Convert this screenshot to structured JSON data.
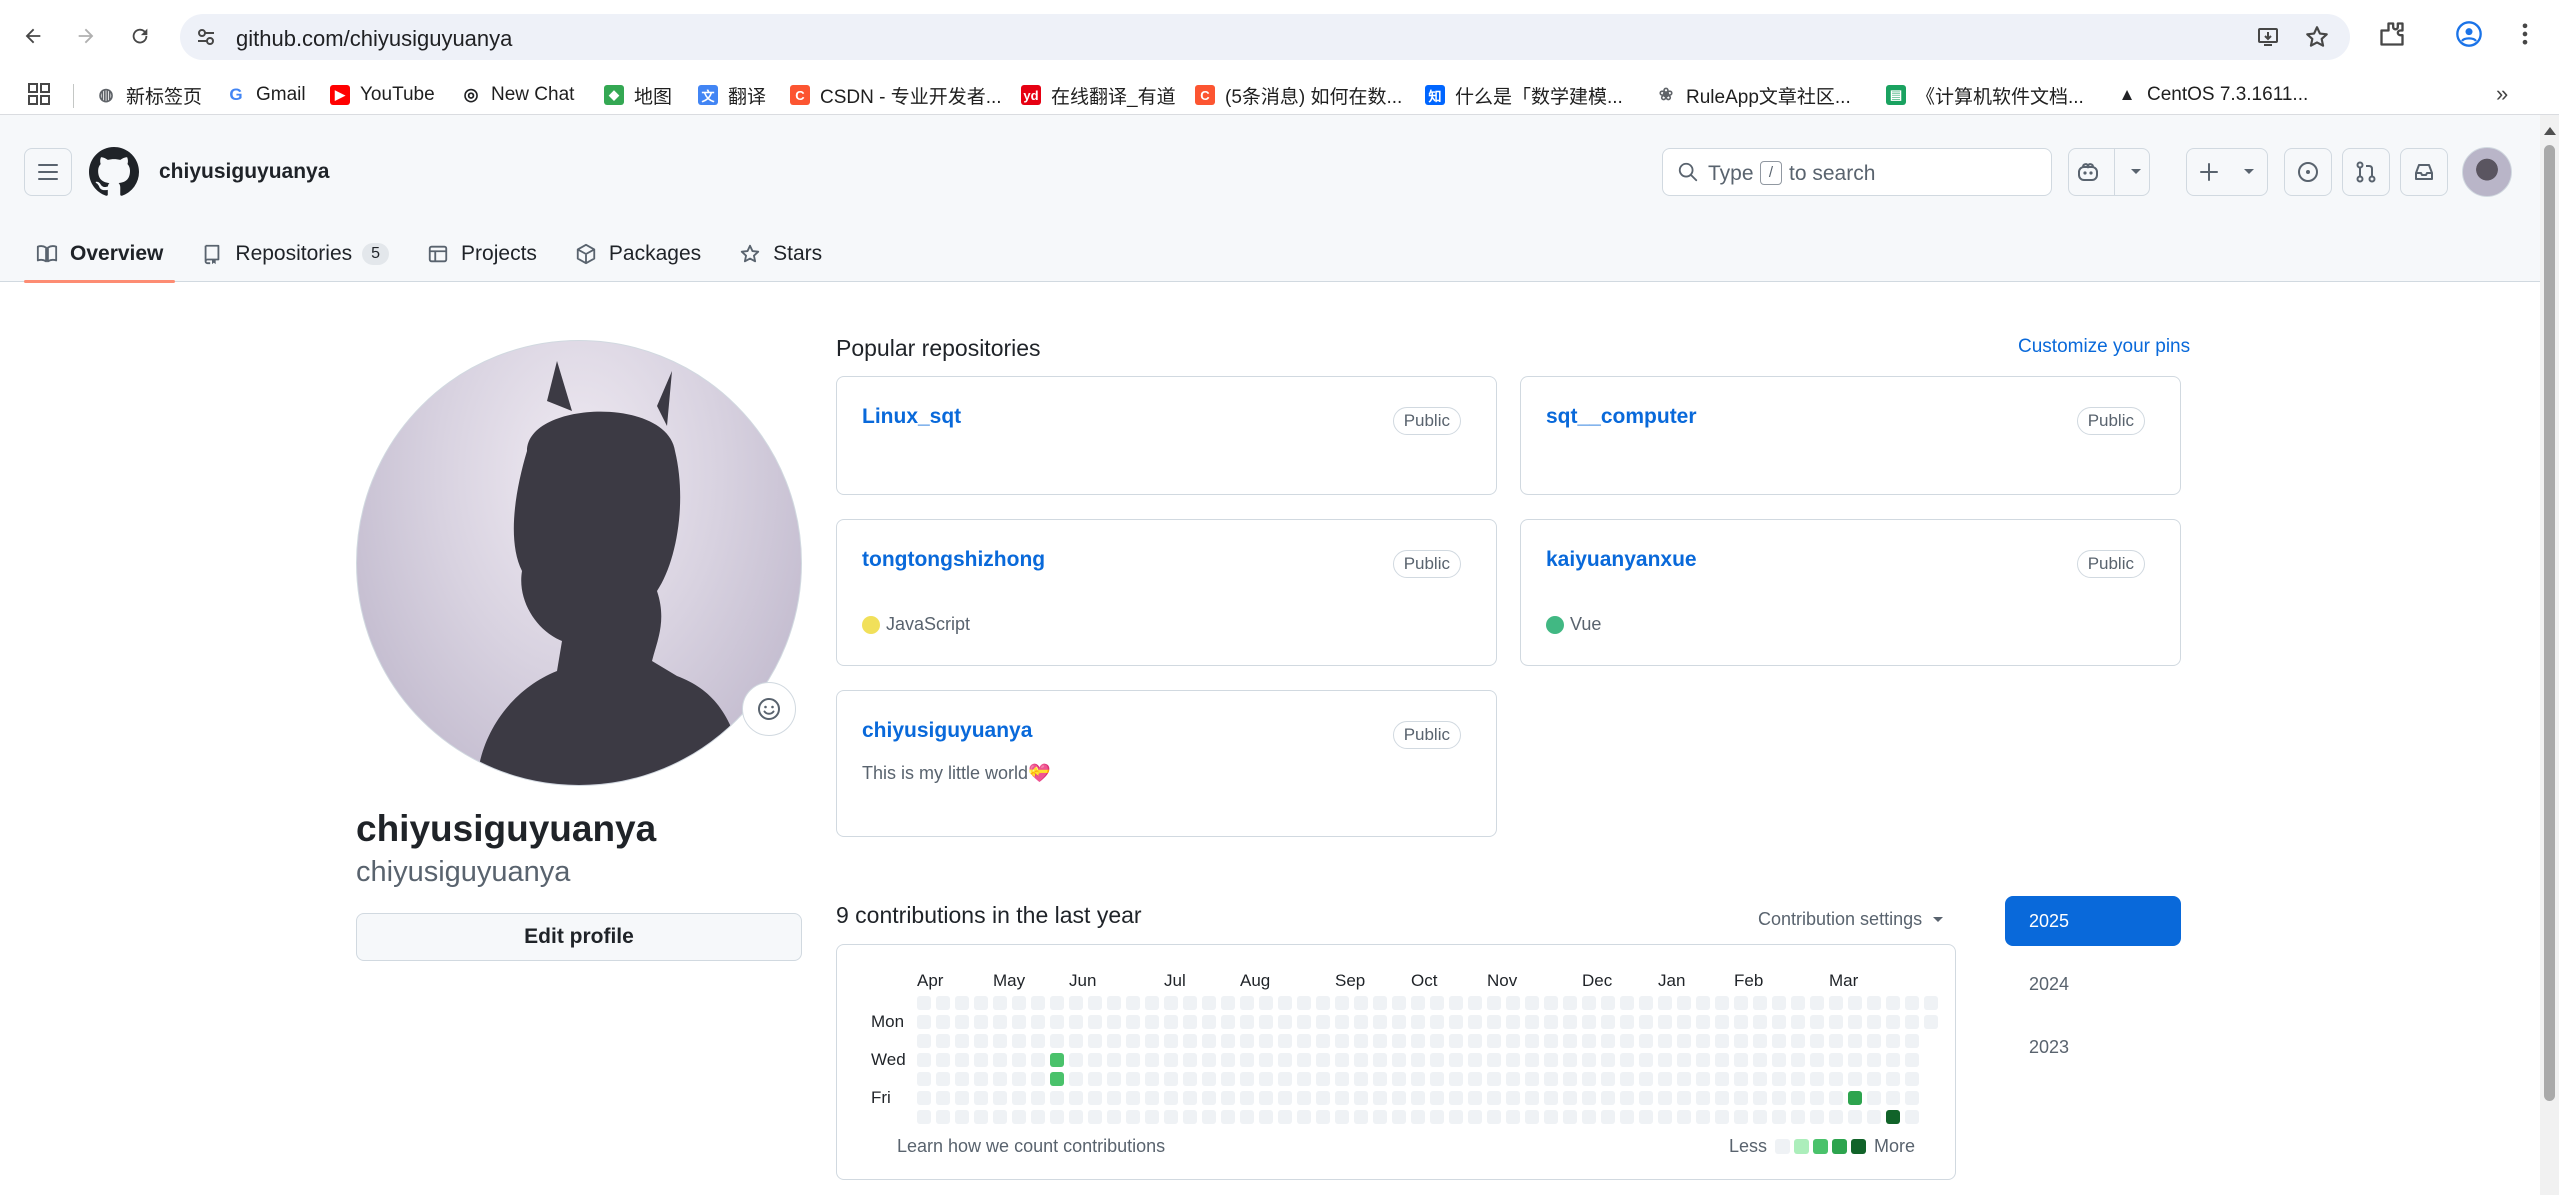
{
  "browser": {
    "url": "github.com/chiyusiguyuanya",
    "bookmarks": [
      {
        "label": "新标签页",
        "icon": "globe-icon",
        "color": "#5f6368"
      },
      {
        "label": "Gmail",
        "icon": "google-icon",
        "color": "#4285f4"
      },
      {
        "label": "YouTube",
        "icon": "youtube-icon",
        "color": "#ff0000"
      },
      {
        "label": "New Chat",
        "icon": "openai-icon",
        "color": "#202124"
      },
      {
        "label": "地图",
        "icon": "maps-icon",
        "color": "#34a853"
      },
      {
        "label": "翻译",
        "icon": "translate-icon",
        "color": "#4285f4"
      },
      {
        "label": "CSDN - 专业开发者...",
        "icon": "csdn-icon",
        "color": "#fc5531"
      },
      {
        "label": "在线翻译_有道",
        "icon": "youdao-icon",
        "color": "#e60012"
      },
      {
        "label": "(5条消息) 如何在数...",
        "icon": "csdn-icon",
        "color": "#fc5531"
      },
      {
        "label": "什么是「数学建模...",
        "icon": "zhihu-icon",
        "color": "#0066ff"
      },
      {
        "label": "RuleApp文章社区...",
        "icon": "ruleapp-icon",
        "color": "#5f6368"
      },
      {
        "label": "《计算机软件文档...",
        "icon": "doc-icon",
        "color": "#1aa260"
      },
      {
        "label": "CentOS 7.3.1611...",
        "icon": "linux-icon",
        "color": "#202124"
      }
    ]
  },
  "header": {
    "username": "chiyusiguyuanya",
    "search_prefix": "Type",
    "search_key": "/",
    "search_suffix": "to search"
  },
  "tabs": [
    {
      "label": "Overview",
      "icon": "book-icon",
      "active": true
    },
    {
      "label": "Repositories",
      "icon": "repo-icon",
      "count": "5"
    },
    {
      "label": "Projects",
      "icon": "table-icon"
    },
    {
      "label": "Packages",
      "icon": "package-icon"
    },
    {
      "label": "Stars",
      "icon": "star-icon"
    }
  ],
  "profile": {
    "name": "chiyusiguyuanya",
    "login": "chiyusiguyuanya",
    "edit_label": "Edit profile"
  },
  "pinned": {
    "title": "Popular repositories",
    "customize_label": "Customize your pins",
    "repos": [
      {
        "name": "Linux_sqt",
        "visibility": "Public"
      },
      {
        "name": "sqt__computer",
        "visibility": "Public"
      },
      {
        "name": "tongtongshizhong",
        "visibility": "Public",
        "language": "JavaScript",
        "language_color": "#f1e05a"
      },
      {
        "name": "kaiyuanyanxue",
        "visibility": "Public",
        "language": "Vue",
        "language_color": "#41b883"
      },
      {
        "name": "chiyusiguyuanya",
        "visibility": "Public",
        "description": "This is my little world💝"
      }
    ]
  },
  "contributions": {
    "title": "9 contributions in the last year",
    "settings_label": "Contribution settings",
    "months": [
      "Apr",
      "May",
      "Jun",
      "Jul",
      "Aug",
      "Sep",
      "Oct",
      "Nov",
      "Dec",
      "Jan",
      "Feb",
      "Mar"
    ],
    "day_labels": [
      "Mon",
      "Wed",
      "Fri"
    ],
    "learn_label": "Learn how we count contributions",
    "legend_less": "Less",
    "legend_more": "More",
    "legend_colors": [
      "#eff2f5",
      "#aceebb",
      "#4ac26b",
      "#2da44e",
      "#116329"
    ],
    "active_cells": [
      {
        "week": 7,
        "day": 3,
        "level": 2
      },
      {
        "week": 7,
        "day": 4,
        "level": 2
      },
      {
        "week": 49,
        "day": 5,
        "level": 3
      },
      {
        "week": 51,
        "day": 6,
        "level": 4
      }
    ],
    "years": [
      "2025",
      "2024",
      "2023"
    ],
    "selected_year": "2025"
  }
}
